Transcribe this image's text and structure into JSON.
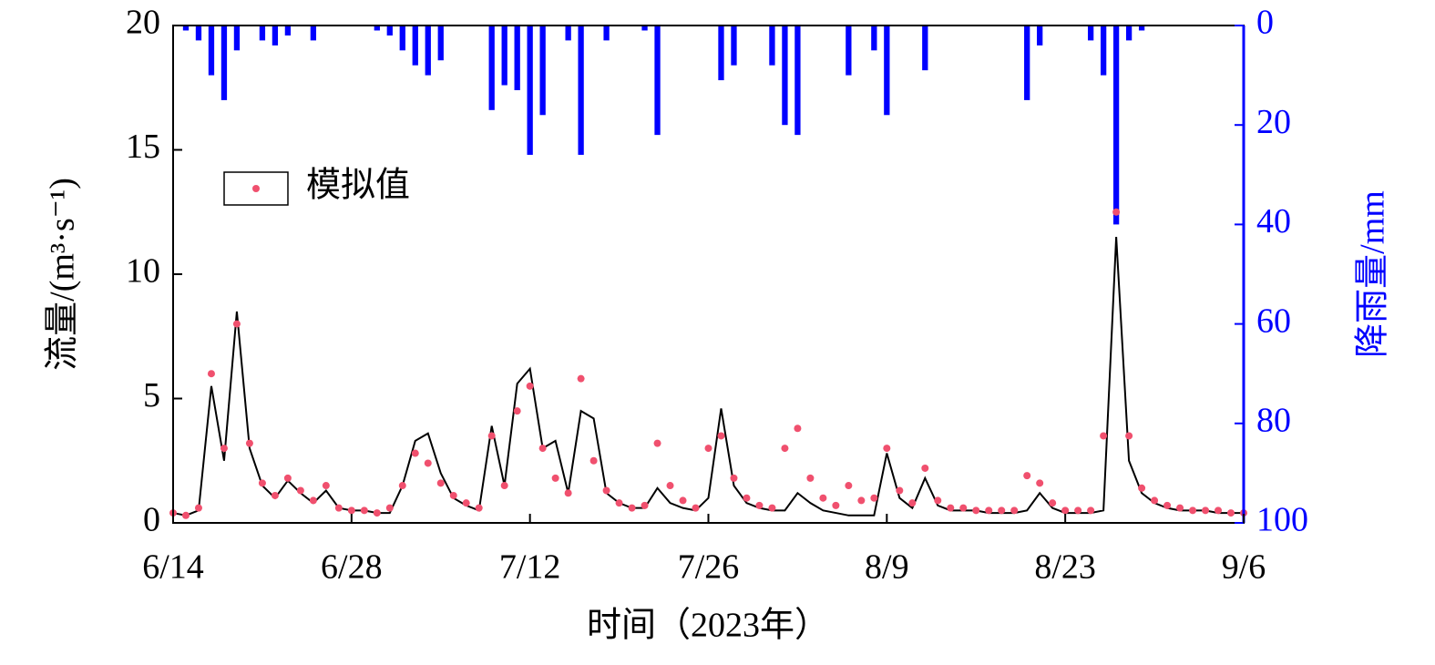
{
  "chart_data": {
    "type": "line",
    "x_label": "时间（2023年）",
    "y_label": "流量/(m³·s⁻¹)",
    "y2_label": "降雨量/mm",
    "x": [
      "6/14",
      "6/15",
      "6/16",
      "6/17",
      "6/18",
      "6/19",
      "6/20",
      "6/21",
      "6/22",
      "6/23",
      "6/24",
      "6/25",
      "6/26",
      "6/27",
      "6/28",
      "6/29",
      "6/30",
      "7/1",
      "7/2",
      "7/3",
      "7/4",
      "7/5",
      "7/6",
      "7/7",
      "7/8",
      "7/9",
      "7/10",
      "7/11",
      "7/12",
      "7/13",
      "7/14",
      "7/15",
      "7/16",
      "7/17",
      "7/18",
      "7/19",
      "7/20",
      "7/21",
      "7/22",
      "7/23",
      "7/24",
      "7/25",
      "7/26",
      "7/27",
      "7/28",
      "7/29",
      "7/30",
      "7/31",
      "8/1",
      "8/2",
      "8/3",
      "8/4",
      "8/5",
      "8/6",
      "8/7",
      "8/8",
      "8/9",
      "8/10",
      "8/11",
      "8/12",
      "8/13",
      "8/14",
      "8/15",
      "8/16",
      "8/17",
      "8/18",
      "8/19",
      "8/20",
      "8/21",
      "8/22",
      "8/23",
      "8/24",
      "8/25",
      "8/26",
      "8/27",
      "8/28",
      "8/29",
      "8/30",
      "8/31",
      "9/1",
      "9/2",
      "9/3",
      "9/4",
      "9/5",
      "9/6"
    ],
    "series": [
      {
        "color": "#000000",
        "type": "line",
        "values": [
          0.4,
          0.3,
          0.5,
          5.5,
          2.5,
          8.5,
          3.0,
          1.5,
          1.0,
          1.7,
          1.2,
          0.8,
          1.3,
          0.6,
          0.5,
          0.5,
          0.4,
          0.4,
          1.5,
          3.3,
          3.6,
          2.0,
          1.0,
          0.7,
          0.5,
          3.9,
          1.5,
          5.6,
          6.2,
          3.0,
          3.3,
          1.2,
          4.5,
          4.2,
          1.2,
          0.8,
          0.6,
          0.6,
          1.4,
          0.8,
          0.6,
          0.5,
          1.0,
          4.6,
          1.5,
          0.8,
          0.6,
          0.5,
          0.5,
          1.2,
          0.8,
          0.5,
          0.4,
          0.3,
          0.3,
          0.3,
          2.8,
          1.0,
          0.6,
          1.8,
          0.7,
          0.5,
          0.5,
          0.5,
          0.4,
          0.4,
          0.4,
          0.5,
          1.2,
          0.6,
          0.4,
          0.4,
          0.4,
          0.5,
          11.5,
          2.5,
          1.2,
          0.8,
          0.6,
          0.5,
          0.5,
          0.5,
          0.4,
          0.4,
          0.4
        ]
      },
      {
        "name": "模拟值",
        "color": "#f0506e",
        "type": "scatter",
        "values": [
          0.4,
          0.3,
          0.6,
          6.0,
          3.0,
          8.0,
          3.2,
          1.6,
          1.1,
          1.8,
          1.3,
          0.9,
          1.5,
          0.6,
          0.5,
          0.5,
          0.4,
          0.6,
          1.5,
          2.8,
          2.4,
          1.6,
          1.1,
          0.8,
          0.6,
          3.5,
          1.5,
          4.5,
          5.5,
          3.0,
          1.8,
          1.2,
          5.8,
          2.5,
          1.3,
          0.8,
          0.6,
          0.7,
          3.2,
          1.5,
          0.9,
          0.6,
          3.0,
          3.5,
          1.8,
          1.0,
          0.7,
          0.6,
          3.0,
          3.8,
          1.8,
          1.0,
          0.7,
          1.5,
          0.9,
          1.0,
          3.0,
          1.3,
          0.8,
          2.2,
          0.9,
          0.6,
          0.6,
          0.5,
          0.5,
          0.5,
          0.5,
          1.9,
          1.6,
          0.8,
          0.5,
          0.5,
          0.5,
          3.5,
          12.5,
          3.5,
          1.4,
          0.9,
          0.7,
          0.6,
          0.5,
          0.5,
          0.5,
          0.4,
          0.4
        ]
      },
      {
        "color": "#0000ff",
        "type": "bar",
        "axis": "y2",
        "values": [
          0,
          1,
          3,
          10,
          15,
          5,
          0,
          3,
          4,
          2,
          0,
          3,
          0,
          0,
          0,
          0,
          1,
          2,
          5,
          8,
          10,
          7,
          0,
          0,
          0,
          17,
          12,
          13,
          26,
          18,
          0,
          3,
          26,
          0,
          3,
          0,
          0,
          1,
          22,
          0,
          0,
          0,
          0,
          11,
          8,
          0,
          0,
          8,
          20,
          22,
          0,
          0,
          0,
          10,
          0,
          5,
          18,
          0,
          0,
          9,
          0,
          0,
          0,
          0,
          0,
          0,
          0,
          15,
          4,
          0,
          0,
          0,
          3,
          10,
          40,
          3,
          1,
          0,
          0,
          0,
          0,
          0,
          0,
          0,
          0
        ]
      }
    ],
    "xlim": [
      "6/14",
      "9/6"
    ],
    "xticks": [
      "6/14",
      "6/28",
      "7/12",
      "7/26",
      "8/9",
      "8/23",
      "9/6"
    ],
    "ylim": [
      0,
      20
    ],
    "yticks": [
      0,
      5,
      10,
      15,
      20
    ],
    "y2lim": [
      100,
      0
    ],
    "y2ticks": [
      0,
      20,
      40,
      60,
      80,
      100
    ],
    "legend": "upper left"
  }
}
